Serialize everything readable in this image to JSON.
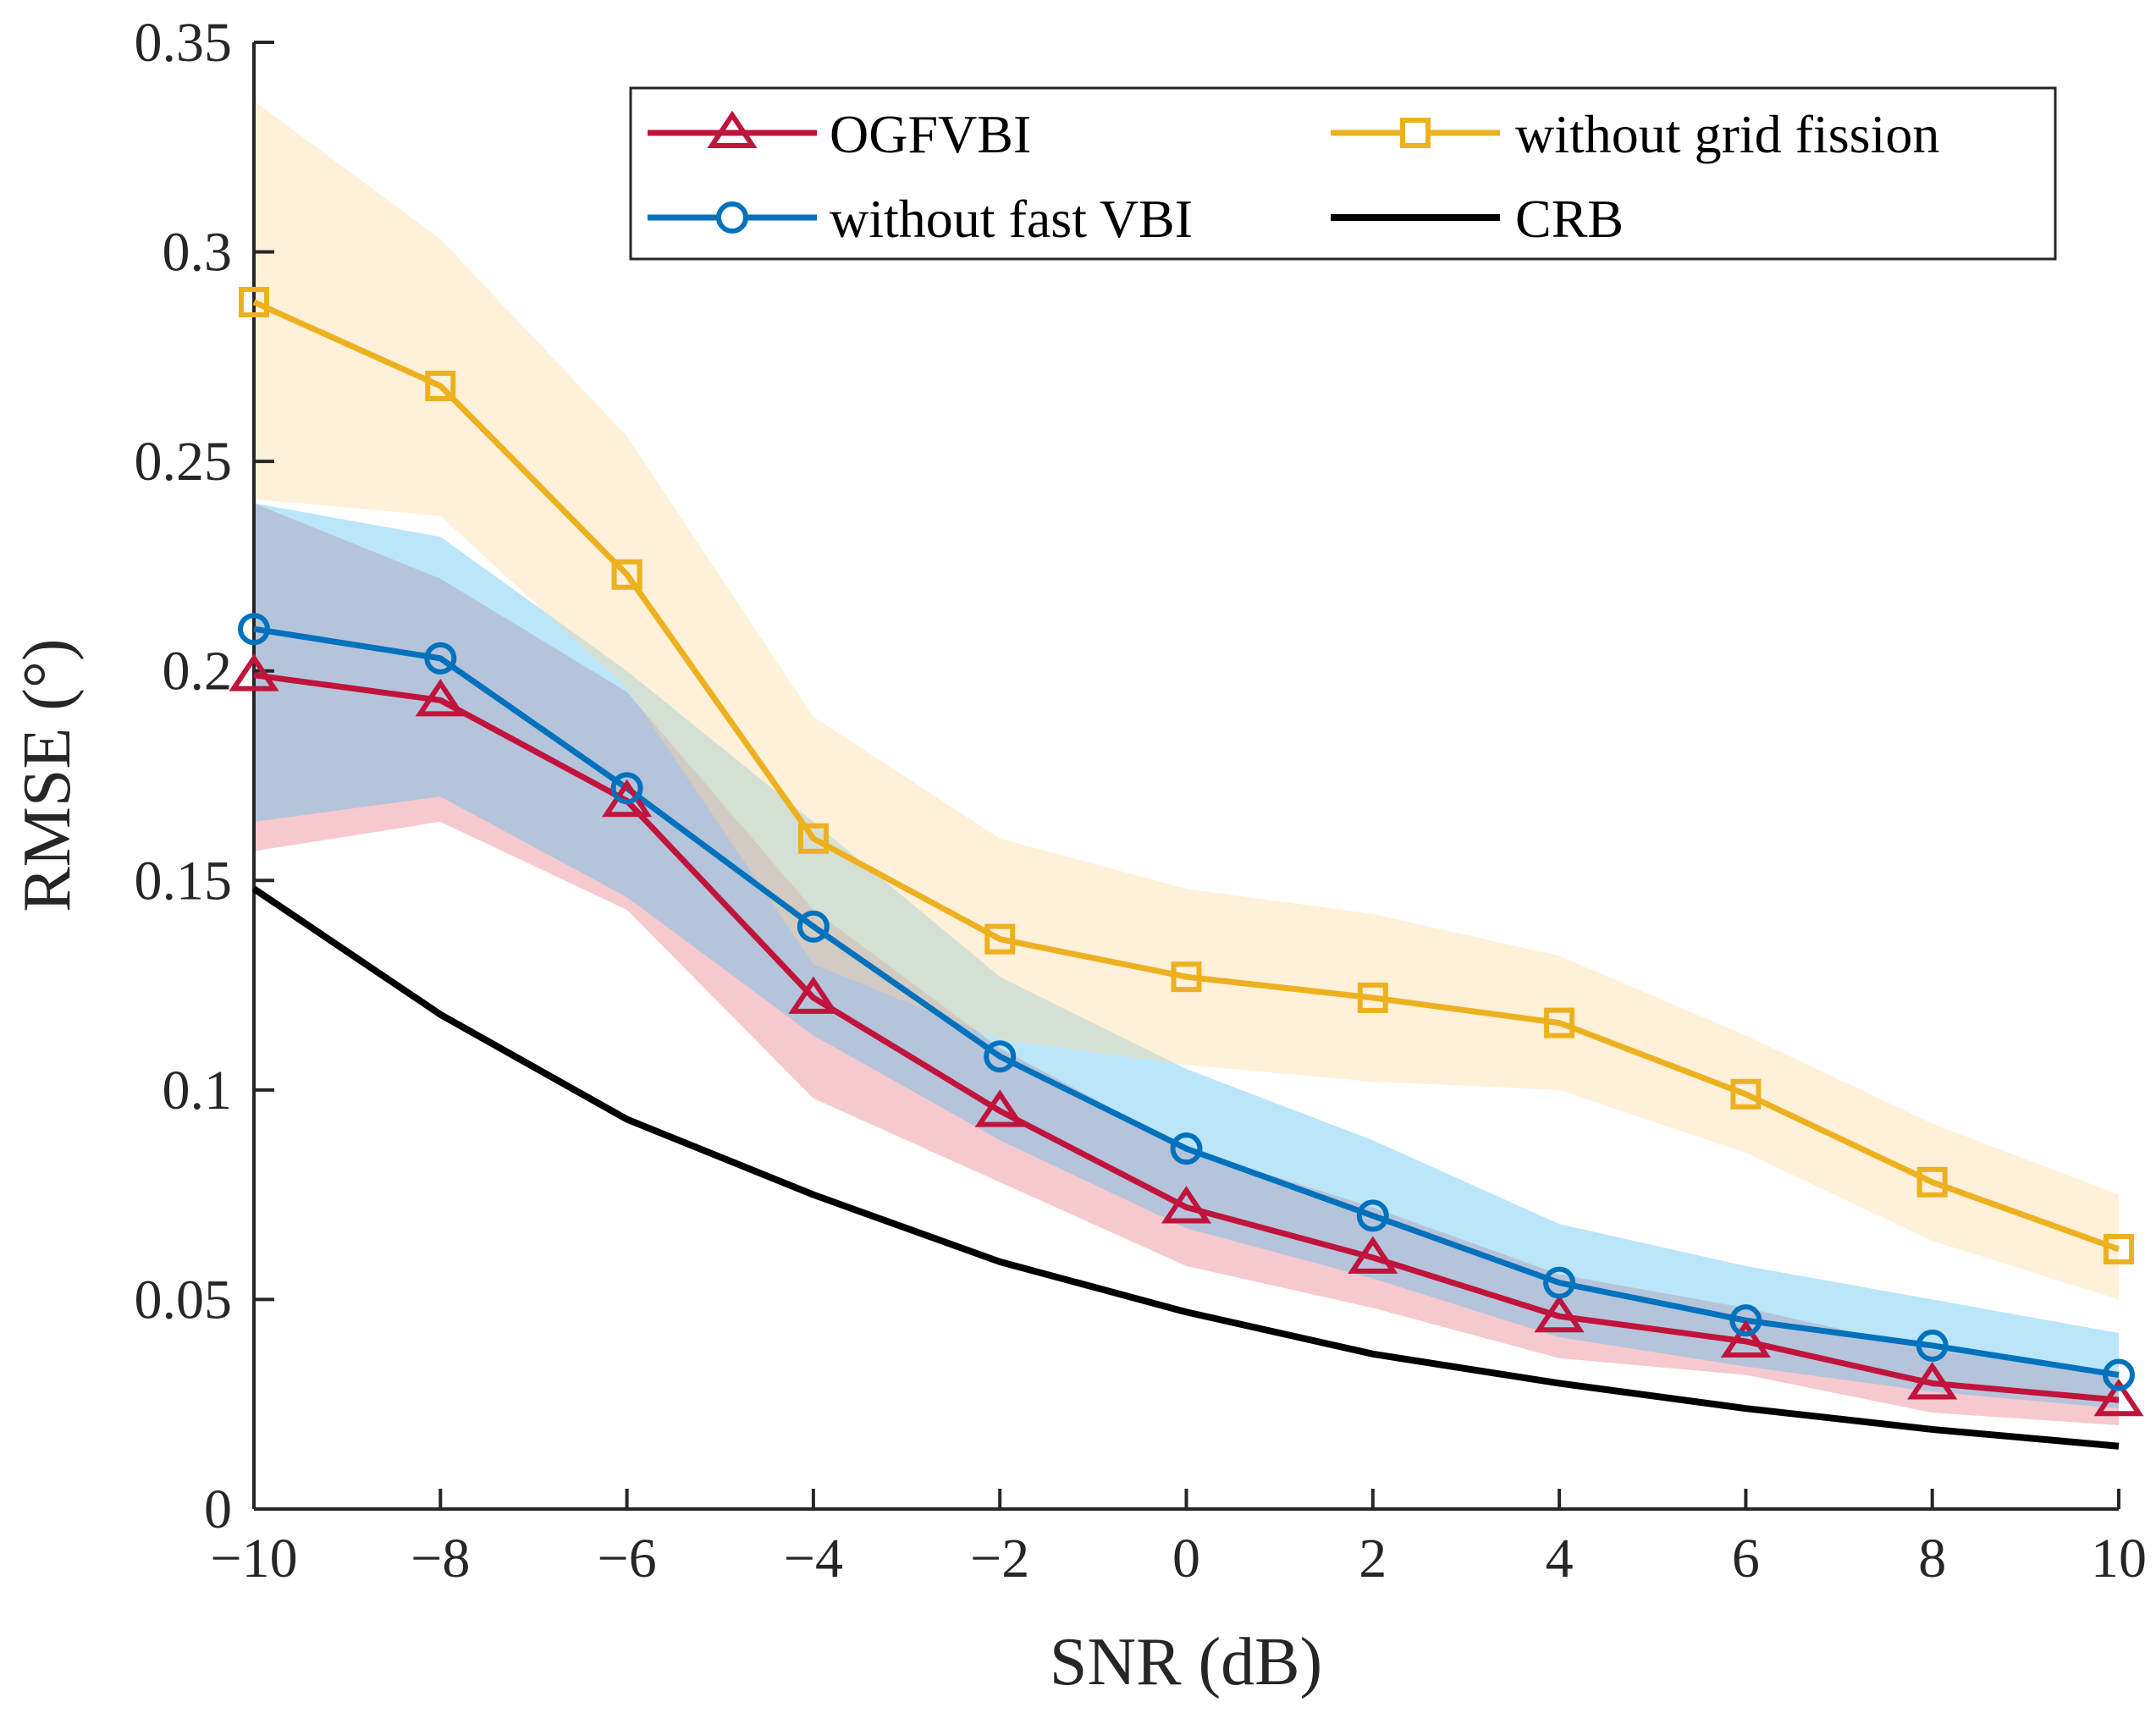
{
  "chart_data": {
    "type": "line",
    "title": "",
    "xlabel": "SNR (dB)",
    "ylabel": "RMSE (°)",
    "xlim": [
      -10,
      10
    ],
    "ylim": [
      0,
      0.35
    ],
    "x": [
      -10,
      -8,
      -6,
      -4,
      -2,
      0,
      2,
      4,
      6,
      8,
      10
    ],
    "xticks": [
      -10,
      -8,
      -6,
      -4,
      -2,
      0,
      2,
      4,
      6,
      8,
      10
    ],
    "xtick_labels": [
      "−10",
      "−8",
      "−6",
      "−4",
      "−2",
      "0",
      "2",
      "4",
      "6",
      "8",
      "10"
    ],
    "yticks": [
      0,
      0.05,
      0.1,
      0.15,
      0.2,
      0.25,
      0.3,
      0.35
    ],
    "ytick_labels": [
      "0",
      "0.05",
      "0.1",
      "0.15",
      "0.2",
      "0.25",
      "0.3",
      "0.35"
    ],
    "grid": false,
    "legend_position": "top-right",
    "series": [
      {
        "name": "OGFVBI",
        "color": "#C0143C",
        "band_color": "#E8707E",
        "marker": "triangle",
        "values": [
          0.199,
          0.193,
          0.169,
          0.122,
          0.095,
          0.072,
          0.06,
          0.046,
          0.04,
          0.03,
          0.026
        ],
        "upper": [
          0.24,
          0.222,
          0.195,
          0.143,
          0.11,
          0.086,
          0.072,
          0.056,
          0.048,
          0.038,
          0.032
        ],
        "lower": [
          0.157,
          0.164,
          0.143,
          0.098,
          0.078,
          0.058,
          0.048,
          0.036,
          0.032,
          0.023,
          0.02
        ]
      },
      {
        "name": "without fast VBI",
        "color": "#0072BD",
        "band_color": "#4DBEEE",
        "marker": "circle",
        "values": [
          0.21,
          0.203,
          0.172,
          0.139,
          0.108,
          0.086,
          0.07,
          0.054,
          0.045,
          0.039,
          0.032
        ],
        "upper": [
          0.24,
          0.232,
          0.2,
          0.164,
          0.127,
          0.105,
          0.088,
          0.068,
          0.058,
          0.05,
          0.042
        ],
        "lower": [
          0.164,
          0.17,
          0.146,
          0.113,
          0.088,
          0.067,
          0.055,
          0.041,
          0.034,
          0.028,
          0.024
        ]
      },
      {
        "name": "without grid fission",
        "color": "#EDB120",
        "band_color": "#FFD89A",
        "marker": "square",
        "values": [
          0.288,
          0.268,
          0.223,
          0.16,
          0.136,
          0.127,
          0.122,
          0.116,
          0.099,
          0.078,
          0.062
        ],
        "upper": [
          0.336,
          0.303,
          0.256,
          0.189,
          0.16,
          0.148,
          0.142,
          0.132,
          0.113,
          0.092,
          0.075
        ],
        "lower": [
          0.241,
          0.237,
          0.196,
          0.13,
          0.112,
          0.106,
          0.102,
          0.1,
          0.085,
          0.064,
          0.05
        ]
      },
      {
        "name": "CRB",
        "color": "#000000",
        "marker": "none",
        "values": [
          0.148,
          0.118,
          0.093,
          0.075,
          0.059,
          0.047,
          0.037,
          0.03,
          0.024,
          0.019,
          0.015
        ]
      }
    ]
  }
}
